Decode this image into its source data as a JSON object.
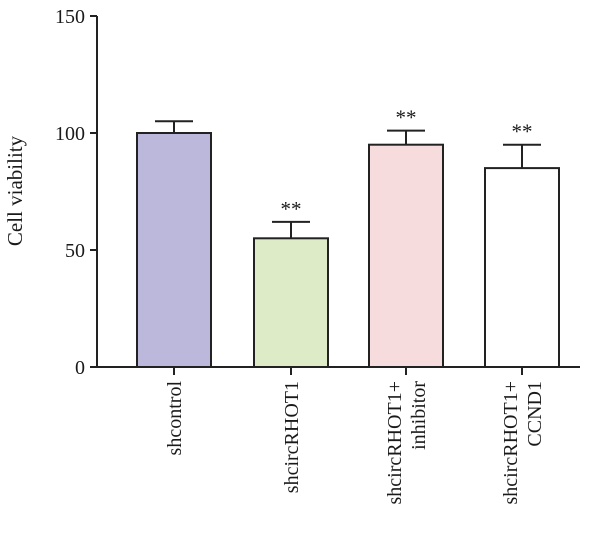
{
  "chart_data": {
    "type": "bar",
    "ylabel": "Cell viability",
    "xlabel": "",
    "title": "",
    "ylim": [
      0,
      150
    ],
    "yticks": [
      0,
      50,
      100,
      150
    ],
    "grid": false,
    "categories": [
      [
        "shcontrol"
      ],
      [
        "shcircRHOT1"
      ],
      [
        "shcircRHOT1+",
        "inhibitor"
      ],
      [
        "shcircRHOT1+",
        "CCND1"
      ]
    ],
    "values": [
      100,
      55,
      95,
      85
    ],
    "errors": [
      5,
      7,
      6,
      10
    ],
    "significance": [
      "",
      "**",
      "**",
      "**"
    ],
    "colors": [
      "#bcb8dc",
      "#ddebc6",
      "#f6dcdc",
      "#ffffff"
    ]
  }
}
